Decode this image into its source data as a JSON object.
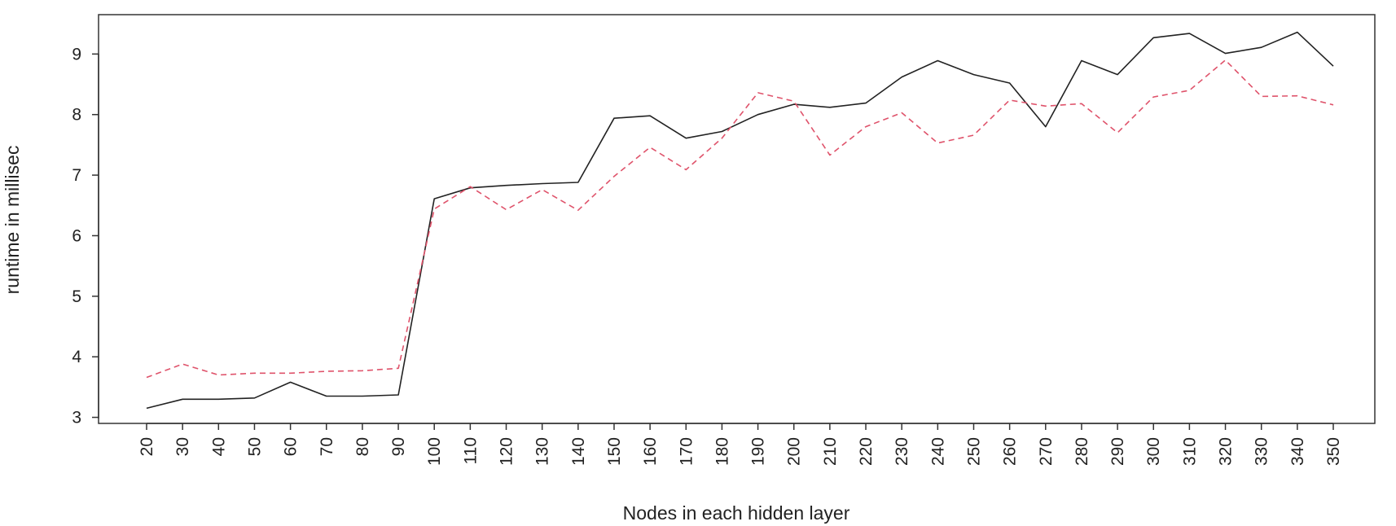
{
  "chart_data": {
    "type": "line",
    "xlabel": "Nodes in each hidden layer",
    "ylabel": "runtime in millisec",
    "x": [
      20,
      30,
      40,
      50,
      60,
      70,
      80,
      90,
      100,
      110,
      120,
      130,
      140,
      150,
      160,
      170,
      180,
      190,
      200,
      210,
      220,
      230,
      240,
      250,
      260,
      270,
      280,
      290,
      300,
      310,
      320,
      330,
      340,
      350
    ],
    "ylim": [
      2.9,
      9.65
    ],
    "yticks": [
      3,
      4,
      5,
      6,
      7,
      8,
      9
    ],
    "grid": false,
    "legend": "none",
    "series": [
      {
        "color": "#222222",
        "style": "solid",
        "values": [
          3.15,
          3.3,
          3.3,
          3.32,
          3.58,
          3.35,
          3.35,
          3.37,
          6.61,
          6.79,
          6.83,
          6.86,
          6.88,
          7.94,
          7.98,
          7.61,
          7.72,
          8.0,
          8.17,
          8.12,
          8.19,
          8.62,
          8.89,
          8.66,
          8.52,
          7.8,
          8.89,
          8.66,
          9.27,
          9.34,
          9.01,
          9.11,
          9.36,
          8.8
        ]
      },
      {
        "color": "#df536b",
        "style": "dashed",
        "values": [
          3.66,
          3.88,
          3.7,
          3.73,
          3.73,
          3.76,
          3.77,
          3.81,
          6.44,
          6.81,
          6.43,
          6.76,
          6.42,
          6.98,
          7.46,
          7.09,
          7.61,
          8.36,
          8.22,
          7.33,
          7.8,
          8.03,
          7.53,
          7.66,
          8.24,
          8.14,
          8.18,
          7.7,
          8.29,
          8.4,
          8.9,
          8.3,
          8.31,
          8.16
        ]
      }
    ]
  }
}
